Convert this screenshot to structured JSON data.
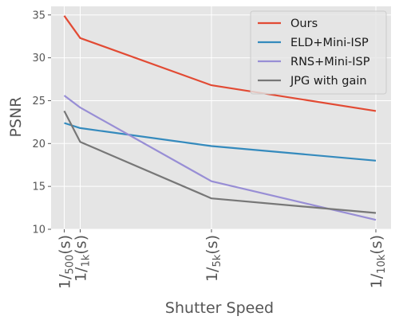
{
  "chart_data": {
    "type": "line",
    "title": "",
    "xlabel": "Shutter Speed",
    "ylabel": "PSNR",
    "x": [
      500,
      1000,
      5000,
      10000
    ],
    "x_tick_labels": [
      "1/500(s)",
      "1/1k(s)",
      "1/5k(s)",
      "1/10k(s)"
    ],
    "x_tick_parts": [
      {
        "base": "1/",
        "sub": "500",
        "suffix": "(s)"
      },
      {
        "base": "1/",
        "sub": "1k",
        "suffix": "(s)"
      },
      {
        "base": "1/",
        "sub": "5k",
        "suffix": "(s)"
      },
      {
        "base": "1/",
        "sub": "10k",
        "suffix": "(s)"
      }
    ],
    "ylim": [
      10,
      36
    ],
    "yticks": [
      10,
      15,
      20,
      25,
      30,
      35
    ],
    "grid": true,
    "legend_position": "top-right",
    "colors": {
      "background": "#e5e5e5",
      "grid": "#ffffff",
      "tick_text": "#555555"
    },
    "series": [
      {
        "name": "Ours",
        "color": "#e24a33",
        "values": [
          34.9,
          32.3,
          26.8,
          23.8
        ]
      },
      {
        "name": "ELD+Mini-ISP",
        "color": "#348abd",
        "values": [
          22.4,
          21.8,
          19.7,
          18.0
        ]
      },
      {
        "name": "RNS+Mini-ISP",
        "color": "#988ed5",
        "values": [
          25.6,
          24.2,
          15.6,
          11.1
        ]
      },
      {
        "name": "JPG with gain",
        "color": "#777777",
        "values": [
          23.8,
          20.2,
          13.6,
          11.9
        ]
      }
    ]
  }
}
